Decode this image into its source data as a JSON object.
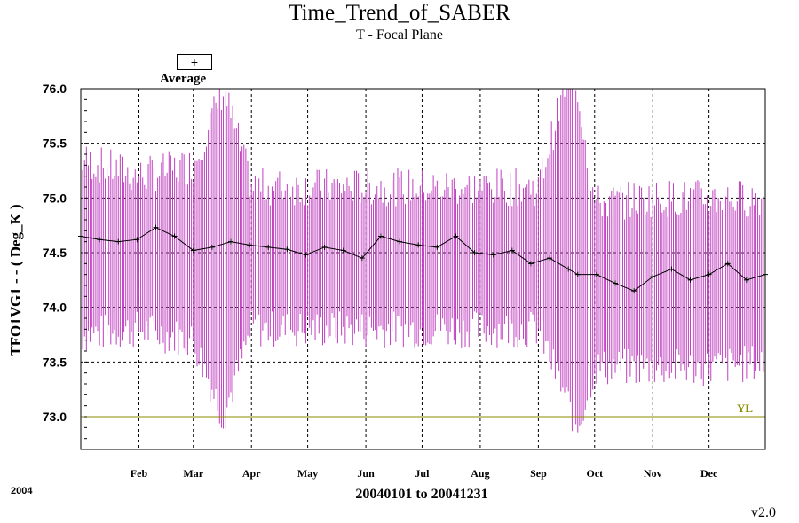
{
  "title": "Time_Trend_of_SABER",
  "subtitle": "T - Focal Plane",
  "legend": {
    "symbol": "+",
    "label": "Average"
  },
  "footer": {
    "year": "2004",
    "version": "v2.0"
  },
  "chart_data": {
    "type": "line",
    "xlabel": "20040101 to 20041231",
    "ylabel": "TFO1VG1  - - ( Deg_K )",
    "x_domain": [
      "2004-01-01",
      "2004-12-31"
    ],
    "ylim": [
      72.7,
      76.0
    ],
    "yticks": [
      73.0,
      73.5,
      74.0,
      74.5,
      75.0,
      75.5,
      76.0
    ],
    "ytick_labels": [
      "73.0",
      "73.5",
      "74.0",
      "74.5",
      "75.0",
      "75.5",
      "76.0"
    ],
    "xticks": [
      {
        "date": "2004-02-01",
        "label": "Feb"
      },
      {
        "date": "2004-03-01",
        "label": "Mar"
      },
      {
        "date": "2004-04-01",
        "label": "Apr"
      },
      {
        "date": "2004-05-01",
        "label": "May"
      },
      {
        "date": "2004-06-01",
        "label": "Jun"
      },
      {
        "date": "2004-07-01",
        "label": "Jul"
      },
      {
        "date": "2004-08-01",
        "label": "Aug"
      },
      {
        "date": "2004-09-01",
        "label": "Sep"
      },
      {
        "date": "2004-10-01",
        "label": "Oct"
      },
      {
        "date": "2004-11-01",
        "label": "Nov"
      },
      {
        "date": "2004-12-01",
        "label": "Dec"
      }
    ],
    "grid": true,
    "limit_line": {
      "value": 73.0,
      "label": "YL",
      "color": "#8b8b00"
    },
    "colors": {
      "range": "#c040c0",
      "average": "#000000"
    },
    "series": [
      {
        "name": "Average",
        "x": [
          "2004-01-01",
          "2004-01-11",
          "2004-01-21",
          "2004-01-31",
          "2004-02-10",
          "2004-02-20",
          "2004-03-01",
          "2004-03-11",
          "2004-03-21",
          "2004-03-31",
          "2004-04-10",
          "2004-04-20",
          "2004-04-30",
          "2004-05-10",
          "2004-05-20",
          "2004-05-30",
          "2004-06-09",
          "2004-06-19",
          "2004-06-29",
          "2004-07-09",
          "2004-07-19",
          "2004-07-29",
          "2004-08-08",
          "2004-08-18",
          "2004-08-28",
          "2004-09-07",
          "2004-09-17",
          "2004-09-22",
          "2004-10-02",
          "2004-10-12",
          "2004-10-22",
          "2004-11-01",
          "2004-11-11",
          "2004-11-21",
          "2004-12-01",
          "2004-12-11",
          "2004-12-21",
          "2004-12-31"
        ],
        "y": [
          74.65,
          74.62,
          74.6,
          74.62,
          74.73,
          74.65,
          74.52,
          74.55,
          74.6,
          74.57,
          74.55,
          74.53,
          74.48,
          74.55,
          74.52,
          74.45,
          74.65,
          74.6,
          74.57,
          74.55,
          74.65,
          74.5,
          74.48,
          74.52,
          74.4,
          74.45,
          74.35,
          74.3,
          74.3,
          74.22,
          74.15,
          74.28,
          74.35,
          74.25,
          74.3,
          74.4,
          74.25,
          74.3
        ]
      },
      {
        "name": "Range",
        "x": [
          "2004-01-01",
          "2004-02-01",
          "2004-03-01",
          "2004-03-17",
          "2004-04-01",
          "2004-05-01",
          "2004-06-01",
          "2004-07-01",
          "2004-08-01",
          "2004-09-01",
          "2004-09-15",
          "2004-09-22",
          "2004-10-01",
          "2004-11-01",
          "2004-12-01",
          "2004-12-31"
        ],
        "y_min": [
          73.75,
          73.8,
          73.7,
          73.0,
          73.8,
          73.8,
          73.8,
          73.8,
          73.8,
          73.8,
          73.2,
          72.9,
          73.45,
          73.45,
          73.45,
          73.5
        ],
        "y_max": [
          75.35,
          75.2,
          75.3,
          76.0,
          75.1,
          75.1,
          75.1,
          75.1,
          75.1,
          75.1,
          76.0,
          76.0,
          74.95,
          75.0,
          75.0,
          75.0
        ]
      }
    ]
  }
}
